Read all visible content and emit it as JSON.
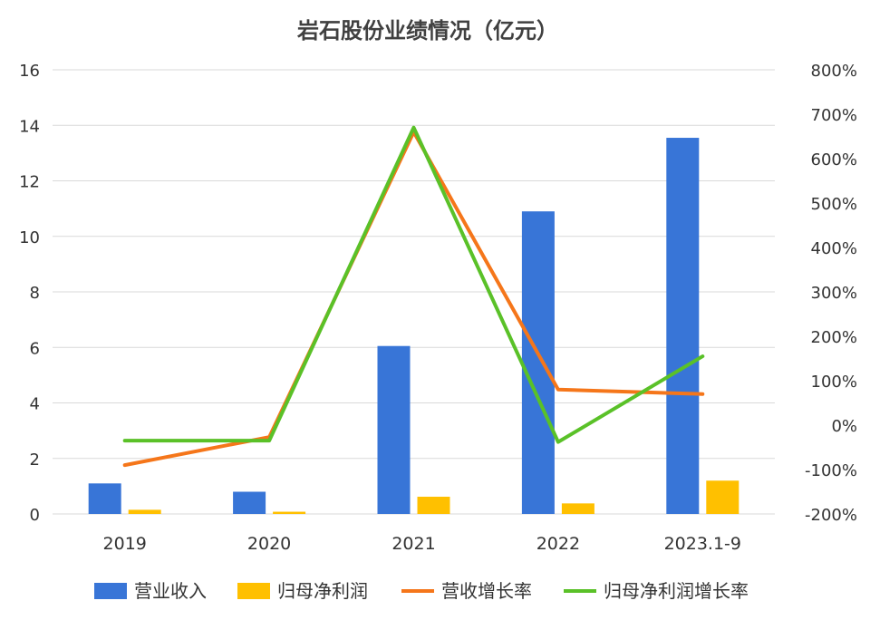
{
  "chart_data": {
    "type": "bar",
    "title": "岩石股份业绩情况（亿元）",
    "categories": [
      "2019",
      "2020",
      "2021",
      "2022",
      "2023.1-9"
    ],
    "y_left": {
      "ylim": [
        0,
        16
      ],
      "ticks": [
        "0",
        "2",
        "4",
        "6",
        "8",
        "10",
        "12",
        "14",
        "16"
      ]
    },
    "y_right": {
      "ylim": [
        -200,
        800
      ],
      "ticks": [
        "-200%",
        "-100%",
        "0%",
        "100%",
        "200%",
        "300%",
        "400%",
        "500%",
        "600%",
        "700%",
        "800%"
      ]
    },
    "grid": true,
    "legend_position": "bottom",
    "series": [
      {
        "name": "营业收入",
        "kind": "bar",
        "axis": "left",
        "color": "#3875d7",
        "values": [
          1.1,
          0.8,
          6.05,
          10.9,
          13.55
        ]
      },
      {
        "name": "归母净利润",
        "kind": "bar",
        "axis": "left",
        "color": "#ffc000",
        "values": [
          0.15,
          0.08,
          0.62,
          0.38,
          1.2
        ]
      },
      {
        "name": "营收增长率",
        "kind": "line",
        "axis": "right",
        "color": "#f5761a",
        "values": [
          -90,
          -27,
          660,
          80,
          70
        ]
      },
      {
        "name": "归母净利润增长率",
        "kind": "line",
        "axis": "right",
        "color": "#5ac128",
        "values": [
          -35,
          -35,
          670,
          -38,
          155
        ]
      }
    ]
  }
}
